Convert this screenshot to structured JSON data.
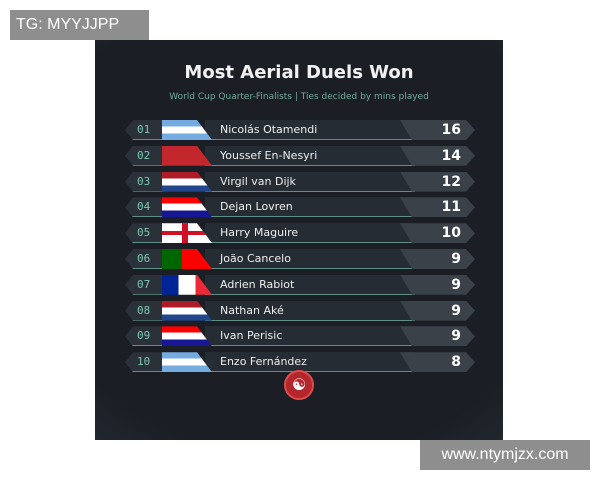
{
  "watermarks": {
    "top_left": "TG: MYYJJPP",
    "bottom_right": "www.ntymjzx.com"
  },
  "title": "Most Aerial Duels Won",
  "subtitle": "World Cup Quarter-Finalists | Ties decided by mins played",
  "rows": [
    {
      "rank": "01",
      "flag": "argentina",
      "name": "Nicolás Otamendi",
      "value": "16"
    },
    {
      "rank": "02",
      "flag": "morocco",
      "name": "Youssef En-Nesyri",
      "value": "14"
    },
    {
      "rank": "03",
      "flag": "netherlands",
      "name": "Virgil van Dijk",
      "value": "12"
    },
    {
      "rank": "04",
      "flag": "croatia",
      "name": "Dejan Lovren",
      "value": "11"
    },
    {
      "rank": "05",
      "flag": "england",
      "name": "Harry Maguire",
      "value": "10"
    },
    {
      "rank": "06",
      "flag": "portugal",
      "name": "João Cancelo",
      "value": "9"
    },
    {
      "rank": "07",
      "flag": "france",
      "name": "Adrien Rabiot",
      "value": "9"
    },
    {
      "rank": "08",
      "flag": "netherlands",
      "name": "Nathan Aké",
      "value": "9"
    },
    {
      "rank": "09",
      "flag": "croatia",
      "name": "Ivan Perisic",
      "value": "9"
    },
    {
      "rank": "10",
      "flag": "argentina",
      "name": "Enzo Fernández",
      "value": "8"
    }
  ],
  "logo_icon": "brand-logo-icon"
}
